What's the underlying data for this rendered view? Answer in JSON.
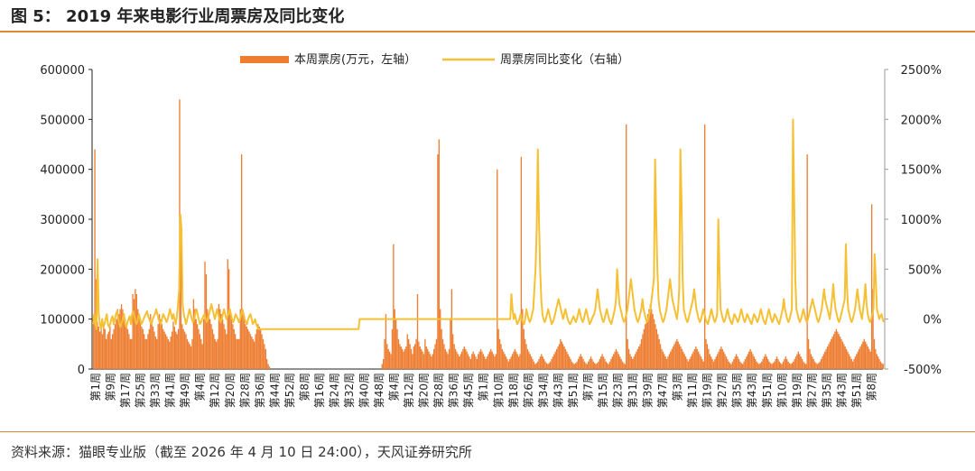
{
  "header": {
    "title": "图 5： 2019 年来电影行业周票房及同比变化"
  },
  "footer": {
    "source": "资料来源：猫眼专业版（截至 2026 年 4 月 10 日 24:00），天风证券研究所"
  },
  "colors": {
    "bar": "#ed7d31",
    "line": "#f5c033",
    "rule": "#e08a2e",
    "axis": "#222222"
  },
  "chart_data": {
    "type": "bar",
    "title": "",
    "legend_position": "top",
    "grid": false,
    "series": [
      {
        "name": "本周票房(万元，左轴）",
        "type": "bar",
        "axis": "left"
      },
      {
        "name": "周票房同比变化（右轴）",
        "type": "line",
        "axis": "right"
      }
    ],
    "left_axis": {
      "range": [
        0,
        600000
      ],
      "ticks": [
        "0",
        "100000",
        "200000",
        "300000",
        "400000",
        "500000",
        "600000"
      ]
    },
    "right_axis": {
      "range": [
        -5,
        25
      ],
      "ticks": [
        "-500%",
        "0%",
        "500%",
        "1000%",
        "1500%",
        "2000%",
        "2500%"
      ]
    },
    "x_tick_labels": [
      "第1周",
      "第9周",
      "第17周",
      "第25周",
      "第33周",
      "第41周",
      "第49周",
      "第4周",
      "第12周",
      "第20周",
      "第28周",
      "第36周",
      "第44周",
      "第52周",
      "第8周",
      "第16周",
      "第24周",
      "第32周",
      "第40周",
      "第48周",
      "第4周",
      "第12周",
      "第20周",
      "第28周",
      "第36周",
      "第45周",
      "第1周",
      "第10周",
      "第18周",
      "第26周",
      "第34周",
      "第43周",
      "第51周",
      "第7周",
      "第15周",
      "第23周",
      "第31周",
      "第39周",
      "第47周",
      "第3周",
      "第11周",
      "第19周",
      "第27周",
      "第35周",
      "第43周",
      "第51周",
      "第10周",
      "第19周",
      "第27周",
      "第35周",
      "第43周",
      "第51周",
      "第8周"
    ],
    "bar_values": [
      100000,
      440000,
      180000,
      95000,
      85000,
      75000,
      80000,
      70000,
      90000,
      80000,
      60000,
      70000,
      75000,
      85000,
      60000,
      70000,
      80000,
      90000,
      100000,
      120000,
      110000,
      120000,
      130000,
      120000,
      110000,
      100000,
      90000,
      80000,
      70000,
      60000,
      60000,
      150000,
      140000,
      160000,
      150000,
      120000,
      110000,
      95000,
      85000,
      80000,
      70000,
      60000,
      60000,
      70000,
      80000,
      110000,
      95000,
      85000,
      75000,
      65000,
      60000,
      90000,
      110000,
      100000,
      90000,
      80000,
      75000,
      70000,
      65000,
      60000,
      55000,
      65000,
      75000,
      95000,
      85000,
      75000,
      70000,
      80000,
      540000,
      290000,
      90000,
      80000,
      75000,
      70000,
      60000,
      55000,
      50000,
      45000,
      60000,
      140000,
      120000,
      100000,
      90000,
      80000,
      70000,
      60000,
      50000,
      100000,
      215000,
      190000,
      120000,
      110000,
      100000,
      90000,
      80000,
      70000,
      60000,
      55000,
      60000,
      130000,
      120000,
      110000,
      100000,
      90000,
      80000,
      70000,
      220000,
      200000,
      120000,
      100000,
      90000,
      80000,
      70000,
      60000,
      60000,
      60000,
      120000,
      430000,
      110000,
      100000,
      90000,
      85000,
      80000,
      75000,
      70000,
      65000,
      60000,
      55000,
      70000,
      80000,
      90000,
      85000,
      80000,
      70000,
      60000,
      50000,
      40000,
      20000,
      10000,
      5000,
      0,
      0,
      0,
      0,
      0,
      0,
      0,
      0,
      0,
      0,
      0,
      0,
      0,
      0,
      0,
      0,
      0,
      0,
      0,
      0,
      0,
      0,
      0,
      0,
      0,
      0,
      0,
      0,
      0,
      0,
      0,
      0,
      0,
      0,
      0,
      0,
      0,
      0,
      0,
      0,
      0,
      0,
      0,
      0,
      0,
      0,
      0,
      0,
      0,
      0,
      0,
      0,
      0,
      0,
      0,
      0,
      0,
      0,
      0,
      0,
      0,
      0,
      0,
      0,
      0,
      0,
      0,
      0,
      0,
      0,
      0,
      0,
      0,
      0,
      0,
      0,
      0,
      0,
      0,
      0,
      0,
      0,
      0,
      0,
      0,
      0,
      0,
      0,
      10000,
      20000,
      60000,
      110000,
      50000,
      40000,
      35000,
      30000,
      80000,
      250000,
      120000,
      100000,
      80000,
      60000,
      50000,
      45000,
      40000,
      35000,
      40000,
      45000,
      70000,
      60000,
      50000,
      40000,
      30000,
      45000,
      50000,
      60000,
      150000,
      55000,
      45000,
      40000,
      35000,
      30000,
      60000,
      45000,
      40000,
      35000,
      30000,
      25000,
      30000,
      40000,
      50000,
      60000,
      430000,
      460000,
      120000,
      80000,
      60000,
      50000,
      40000,
      35000,
      30000,
      40000,
      100000,
      160000,
      70000,
      50000,
      40000,
      35000,
      30000,
      25000,
      30000,
      35000,
      40000,
      45000,
      40000,
      35000,
      30000,
      25000,
      20000,
      30000,
      35000,
      30000,
      25000,
      20000,
      30000,
      35000,
      40000,
      35000,
      30000,
      25000,
      20000,
      25000,
      30000,
      35000,
      40000,
      35000,
      30000,
      25000,
      30000,
      400000,
      80000,
      60000,
      50000,
      40000,
      35000,
      30000,
      25000,
      20000,
      15000,
      20000,
      25000,
      30000,
      35000,
      40000,
      35000,
      30000,
      25000,
      30000,
      425000,
      120000,
      80000,
      60000,
      50000,
      40000,
      35000,
      30000,
      25000,
      20000,
      15000,
      10000,
      12000,
      15000,
      20000,
      25000,
      30000,
      25000,
      20000,
      15000,
      12000,
      10000,
      12000,
      15000,
      20000,
      25000,
      30000,
      35000,
      40000,
      45000,
      50000,
      60000,
      55000,
      50000,
      45000,
      40000,
      35000,
      30000,
      25000,
      20000,
      15000,
      12000,
      10000,
      12000,
      15000,
      20000,
      25000,
      30000,
      25000,
      20000,
      15000,
      12000,
      10000,
      15000,
      20000,
      25000,
      20000,
      15000,
      12000,
      10000,
      12000,
      15000,
      20000,
      25000,
      30000,
      25000,
      20000,
      15000,
      12000,
      10000,
      15000,
      20000,
      25000,
      30000,
      35000,
      40000,
      35000,
      30000,
      25000,
      20000,
      15000,
      12000,
      10000,
      490000,
      60000,
      40000,
      30000,
      25000,
      20000,
      25000,
      30000,
      35000,
      40000,
      45000,
      50000,
      60000,
      70000,
      80000,
      90000,
      100000,
      110000,
      120000,
      130000,
      120000,
      110000,
      100000,
      90000,
      80000,
      70000,
      60000,
      50000,
      40000,
      35000,
      30000,
      25000,
      20000,
      25000,
      30000,
      35000,
      40000,
      45000,
      50000,
      55000,
      60000,
      55000,
      50000,
      45000,
      40000,
      35000,
      30000,
      25000,
      20000,
      15000,
      20000,
      25000,
      30000,
      35000,
      40000,
      45000,
      40000,
      35000,
      30000,
      25000,
      20000,
      15000,
      490000,
      60000,
      50000,
      40000,
      30000,
      25000,
      20000,
      15000,
      20000,
      25000,
      30000,
      35000,
      40000,
      45000,
      40000,
      35000,
      30000,
      25000,
      20000,
      15000,
      12000,
      10000,
      15000,
      20000,
      25000,
      30000,
      25000,
      20000,
      15000,
      12000,
      10000,
      15000,
      20000,
      25000,
      30000,
      35000,
      40000,
      35000,
      30000,
      25000,
      20000,
      15000,
      12000,
      10000,
      12000,
      15000,
      20000,
      25000,
      30000,
      25000,
      20000,
      15000,
      12000,
      10000,
      12000,
      15000,
      20000,
      25000,
      20000,
      15000,
      12000,
      10000,
      15000,
      20000,
      25000,
      20000,
      15000,
      12000,
      10000,
      12000,
      15000,
      20000,
      25000,
      30000,
      35000,
      30000,
      25000,
      20000,
      15000,
      12000,
      10000,
      430000,
      60000,
      40000,
      30000,
      25000,
      20000,
      15000,
      12000,
      10000,
      12000,
      15000,
      20000,
      25000,
      30000,
      35000,
      40000,
      45000,
      50000,
      55000,
      60000,
      65000,
      70000,
      75000,
      80000,
      75000,
      70000,
      65000,
      60000,
      55000,
      50000,
      45000,
      40000,
      35000,
      30000,
      25000,
      20000,
      15000,
      20000,
      25000,
      30000,
      35000,
      40000,
      45000,
      50000,
      55000,
      60000,
      55000,
      50000,
      45000,
      40000,
      35000,
      330000,
      160000,
      60000,
      40000,
      30000,
      25000,
      20000,
      15000,
      12000,
      10000
    ],
    "line_values": [
      -0.5,
      0.5,
      -0.5,
      -1.0,
      6.0,
      0.5,
      -0.5,
      -1.0,
      0.0,
      -0.8,
      -0.5,
      0.0,
      0.5,
      -0.5,
      -0.8,
      -0.5,
      0.0,
      0.3,
      -0.5,
      0.0,
      0.5,
      0.8,
      0.0,
      -0.5,
      -0.8,
      -0.3,
      0.0,
      0.5,
      -0.5,
      -0.8,
      -0.3,
      0.0,
      0.3,
      -0.5,
      0.5,
      0.8,
      0.3,
      -0.3,
      -0.5,
      0.0,
      0.5,
      0.0,
      -0.5,
      -0.3,
      0.0,
      0.3,
      0.5,
      0.8,
      0.3,
      0.0,
      -0.3,
      -0.5,
      0.0,
      0.3,
      0.5,
      1.0,
      0.5,
      0.0,
      -0.3,
      -0.5,
      0.0,
      0.5,
      0.3,
      0.0,
      -0.3,
      0.0,
      0.5,
      1.0,
      0.5,
      0.0,
      0.5,
      0.0,
      -0.5,
      0.3,
      1.5,
      3.0,
      10.5,
      9.0,
      1.5,
      0.5,
      0.0,
      -0.5,
      0.0,
      0.5,
      1.0,
      0.5,
      0.0,
      -0.3,
      0.0,
      0.5,
      1.0,
      0.5,
      0.0,
      -0.5,
      -0.3,
      0.0,
      0.3,
      0.5,
      0.0,
      -0.3,
      0.0,
      0.5,
      1.0,
      1.5,
      1.0,
      0.5,
      0.0,
      0.5,
      1.0,
      0.5,
      0.0,
      -0.3,
      0.0,
      0.5,
      1.0,
      0.5,
      0.0,
      0.3,
      0.5,
      1.0,
      0.5,
      0.0,
      -0.3,
      0.0,
      0.5,
      0.3,
      0.0,
      -0.3,
      0.0,
      0.5,
      1.0,
      0.5,
      0.0,
      -0.3,
      -0.5,
      0.0,
      0.3,
      0.5,
      0.0,
      -0.5,
      -0.3,
      0.0,
      -0.5,
      -0.8,
      -1.0,
      -1.0,
      -1.0,
      -1.0,
      -1.0,
      -1.0,
      -1.0,
      -1.0,
      -1.0,
      -1.0,
      -1.0,
      -1.0,
      -1.0,
      -1.0,
      -1.0,
      -1.0,
      -1.0,
      -1.0,
      -1.0,
      -1.0,
      -1.0,
      -1.0,
      -1.0,
      -1.0,
      -1.0,
      -1.0,
      -1.0,
      -1.0,
      -1.0,
      -1.0,
      -1.0,
      -1.0,
      -1.0,
      -1.0,
      -1.0,
      -1.0,
      -1.0,
      -1.0,
      -1.0,
      -1.0,
      -1.0,
      -1.0,
      -1.0,
      -1.0,
      -1.0,
      -1.0,
      -1.0,
      -1.0,
      -1.0,
      -1.0,
      -1.0,
      -1.0,
      -1.0,
      -1.0,
      -1.0,
      -1.0,
      -1.0,
      -1.0,
      -1.0,
      -1.0,
      -1.0,
      -1.0,
      -1.0,
      -1.0,
      -1.0,
      -1.0,
      -1.0,
      -1.0,
      -1.0,
      -1.0,
      -1.0,
      -1.0,
      -1.0,
      -1.0,
      -1.0,
      -1.0,
      -1.0,
      -1.0,
      -1.0,
      -1.0,
      -1.0,
      -1.0,
      -1.0,
      -1.0,
      -1.0,
      -1.0,
      -1.0,
      -1.0,
      0.0,
      0.0,
      0.0,
      0.0,
      0.0,
      0.0,
      0.0,
      0.0,
      0.0,
      0.0,
      0.0,
      0.0,
      0.0,
      0.0,
      0.0,
      0.0,
      0.0,
      0.0,
      0.0,
      0.0,
      0.0,
      0.0,
      0.0,
      0.0,
      0.0,
      0.0,
      0.0,
      0.0,
      0.0,
      0.0,
      0.0,
      0.0,
      0.0,
      0.0,
      0.0,
      0.0,
      0.0,
      0.0,
      0.0,
      0.0,
      0.0,
      0.0,
      0.0,
      0.0,
      0.0,
      0.0,
      0.0,
      0.0,
      0.0,
      0.0,
      0.0,
      0.0,
      0.0,
      0.0,
      0.0,
      0.0,
      0.0,
      0.0,
      0.0,
      0.0,
      0.0,
      0.0,
      0.0,
      0.0,
      0.0,
      0.0,
      0.0,
      0.0,
      0.0,
      0.0,
      0.0,
      0.0,
      0.0,
      0.0,
      0.0,
      0.0,
      0.0,
      0.0,
      0.0,
      0.0,
      0.0,
      0.0,
      0.0,
      0.0,
      0.0,
      0.0,
      0.0,
      0.0,
      0.0,
      0.0,
      0.0,
      0.0,
      0.0,
      0.0,
      0.0,
      0.0,
      0.0,
      0.0,
      0.0,
      0.0,
      0.0,
      0.0,
      0.0,
      0.0,
      0.0,
      0.0,
      0.0,
      0.0,
      0.0,
      0.0,
      0.0,
      0.0,
      0.0,
      0.0,
      0.0,
      0.0,
      0.0,
      0.0,
      0.0,
      0.0,
      0.0,
      0.0,
      0.0,
      0.0,
      0.0,
      0.0,
      0.0,
      0.0,
      0.0,
      0.0,
      0.0,
      0.0,
      2.5,
      1.0,
      0.0,
      0.5,
      0.0,
      -0.5,
      -0.3,
      0.0,
      0.5,
      0.0,
      -0.3,
      -0.5,
      0.0,
      1.0,
      0.5,
      0.0,
      -0.3,
      0.0,
      0.5,
      1.0,
      3.0,
      5.0,
      9.0,
      17.0,
      10.0,
      5.0,
      2.0,
      0.5,
      0.0,
      -0.3,
      0.0,
      0.5,
      1.0,
      0.5,
      0.0,
      -0.5,
      -0.3,
      0.0,
      0.5,
      1.0,
      1.5,
      2.0,
      1.5,
      1.0,
      0.5,
      0.0,
      0.5,
      1.0,
      0.5,
      0.0,
      -0.3,
      -0.5,
      -0.3,
      0.0,
      0.3,
      0.0,
      -0.3,
      0.0,
      0.5,
      1.0,
      0.5,
      0.0,
      -0.3,
      0.0,
      0.5,
      1.0,
      0.5,
      0.0,
      -0.5,
      -0.3,
      0.0,
      0.3,
      0.5,
      1.0,
      2.0,
      3.0,
      2.0,
      1.0,
      0.5,
      0.0,
      -0.3,
      0.0,
      0.5,
      1.0,
      0.5,
      0.0,
      -0.3,
      -0.5,
      0.0,
      0.5,
      1.0,
      2.0,
      5.0,
      3.0,
      1.5,
      1.0,
      0.5,
      0.0,
      -0.3,
      0.0,
      0.5,
      1.0,
      2.0,
      3.0,
      4.0,
      3.0,
      2.0,
      1.0,
      0.5,
      0.0,
      -0.3,
      0.0,
      0.5,
      1.0,
      2.0,
      1.0,
      0.5,
      0.0,
      -0.3,
      0.0,
      0.5,
      1.0,
      2.0,
      3.0,
      4.0,
      16.0,
      10.0,
      5.0,
      2.0,
      1.0,
      0.5,
      0.0,
      -0.3,
      0.0,
      0.5,
      1.0,
      2.0,
      3.0,
      4.0,
      3.0,
      2.0,
      1.5,
      1.0,
      0.5,
      0.0,
      1.0,
      3.0,
      17.0,
      12.0,
      4.0,
      1.0,
      0.5,
      0.0,
      -0.3,
      0.0,
      0.5,
      1.0,
      1.5,
      2.0,
      3.0,
      2.0,
      1.0,
      0.5,
      0.0,
      -0.3,
      0.0,
      0.5,
      1.0,
      0.5,
      0.0,
      -0.3,
      -0.5,
      0.0,
      0.5,
      1.0,
      0.5,
      0.0,
      -0.3,
      0.0,
      0.5,
      10.0,
      5.0,
      1.0,
      0.5,
      0.0,
      -0.3,
      0.0,
      0.5,
      1.0,
      0.5,
      0.0,
      -0.3,
      -0.5,
      0.0,
      0.5,
      0.3,
      0.0,
      -0.3,
      0.0,
      0.5,
      1.0,
      0.5,
      0.0,
      -0.3,
      0.0,
      0.5,
      0.3,
      0.0,
      -0.3,
      -0.5,
      0.0,
      0.5,
      0.3,
      0.0,
      -0.3,
      0.0,
      0.5,
      1.0,
      0.5,
      0.0,
      -0.3,
      -0.5,
      0.0,
      0.5,
      1.0,
      0.5,
      0.0,
      -0.3,
      0.0,
      0.5,
      0.3,
      0.0,
      -0.3,
      -0.5,
      0.0,
      0.5,
      1.0,
      2.0,
      1.0,
      0.5,
      0.0,
      -0.3,
      0.0,
      0.5,
      1.0,
      20.0,
      12.0,
      4.0,
      1.0,
      0.5,
      0.0,
      -0.3,
      0.0,
      0.5,
      1.0,
      0.5,
      0.0,
      -0.3,
      0.0,
      0.5,
      1.0,
      1.5,
      2.0,
      1.5,
      1.0,
      0.5,
      0.0,
      -0.3,
      0.0,
      0.5,
      1.0,
      2.0,
      3.0,
      2.0,
      1.5,
      1.0,
      0.5,
      0.0,
      1.0,
      2.0,
      3.5,
      2.0,
      1.0,
      0.5,
      0.0,
      -0.3,
      0.0,
      0.5,
      1.0,
      1.5,
      2.0,
      7.5,
      3.0,
      1.0,
      0.5,
      0.0,
      -0.3,
      0.0,
      0.5,
      1.0,
      2.0,
      3.0,
      2.0,
      1.0,
      0.5,
      0.0,
      1.0,
      2.0,
      3.5,
      1.5,
      0.5,
      0.0,
      -0.3,
      0.0,
      0.5,
      1.0,
      6.5,
      4.0,
      1.0,
      0.5,
      0.0,
      0.3,
      0.5,
      0.0,
      -0.3
    ]
  }
}
